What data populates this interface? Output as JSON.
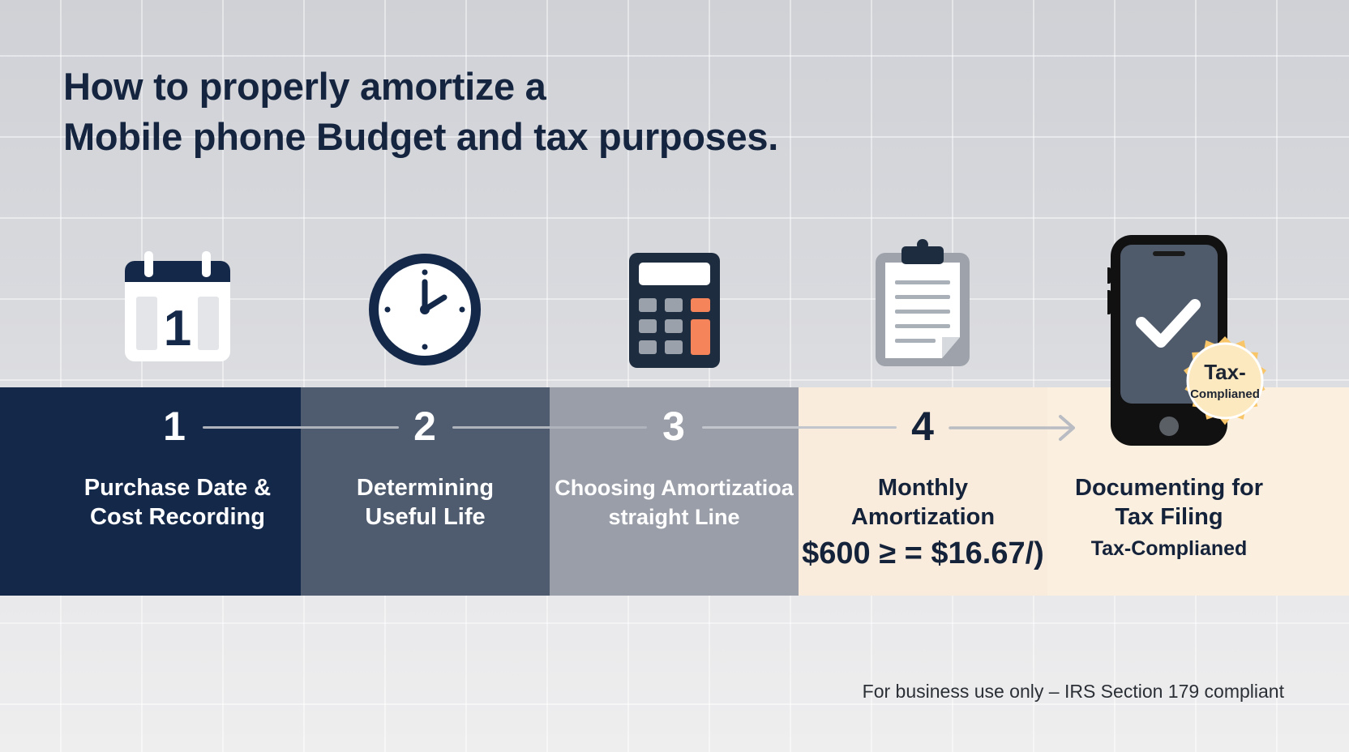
{
  "title": {
    "line1": "How to properly amortize a",
    "line2": "Mobile phone Budget and tax purposes."
  },
  "steps": [
    {
      "number": "1",
      "icon": "calendar-icon",
      "icon_digit": "1",
      "label_line1": "Purchase Date &",
      "label_line2": "Cost Recording"
    },
    {
      "number": "2",
      "icon": "clock-icon",
      "label_line1": "Determining",
      "label_line2": "Useful Life"
    },
    {
      "number": "3",
      "icon": "calculator-icon",
      "label_line1": "Choosing Amortizatioa",
      "label_line2": "straight Line"
    },
    {
      "number": "4",
      "icon": "clipboard-icon",
      "label_line1": "Monthly",
      "label_line2": "Amortization",
      "formula": "$600 ≥ = $16.67/)"
    },
    {
      "icon": "smartphone-check-icon",
      "label_line1": "Documenting for",
      "label_line2": "Tax Filing",
      "sub": "Tax-Complianed"
    }
  ],
  "badge": {
    "line1": "Tax-",
    "line2": "Complianed"
  },
  "footer": "For business use only – IRS Section 179 compliant",
  "colors": {
    "navy": "#14284a",
    "slate": "#4f5c6f",
    "gray": "#9a9ea8",
    "cream": "#f9ecdc",
    "orange_accent": "#f5845a",
    "badge_gold": "#f8c568"
  }
}
